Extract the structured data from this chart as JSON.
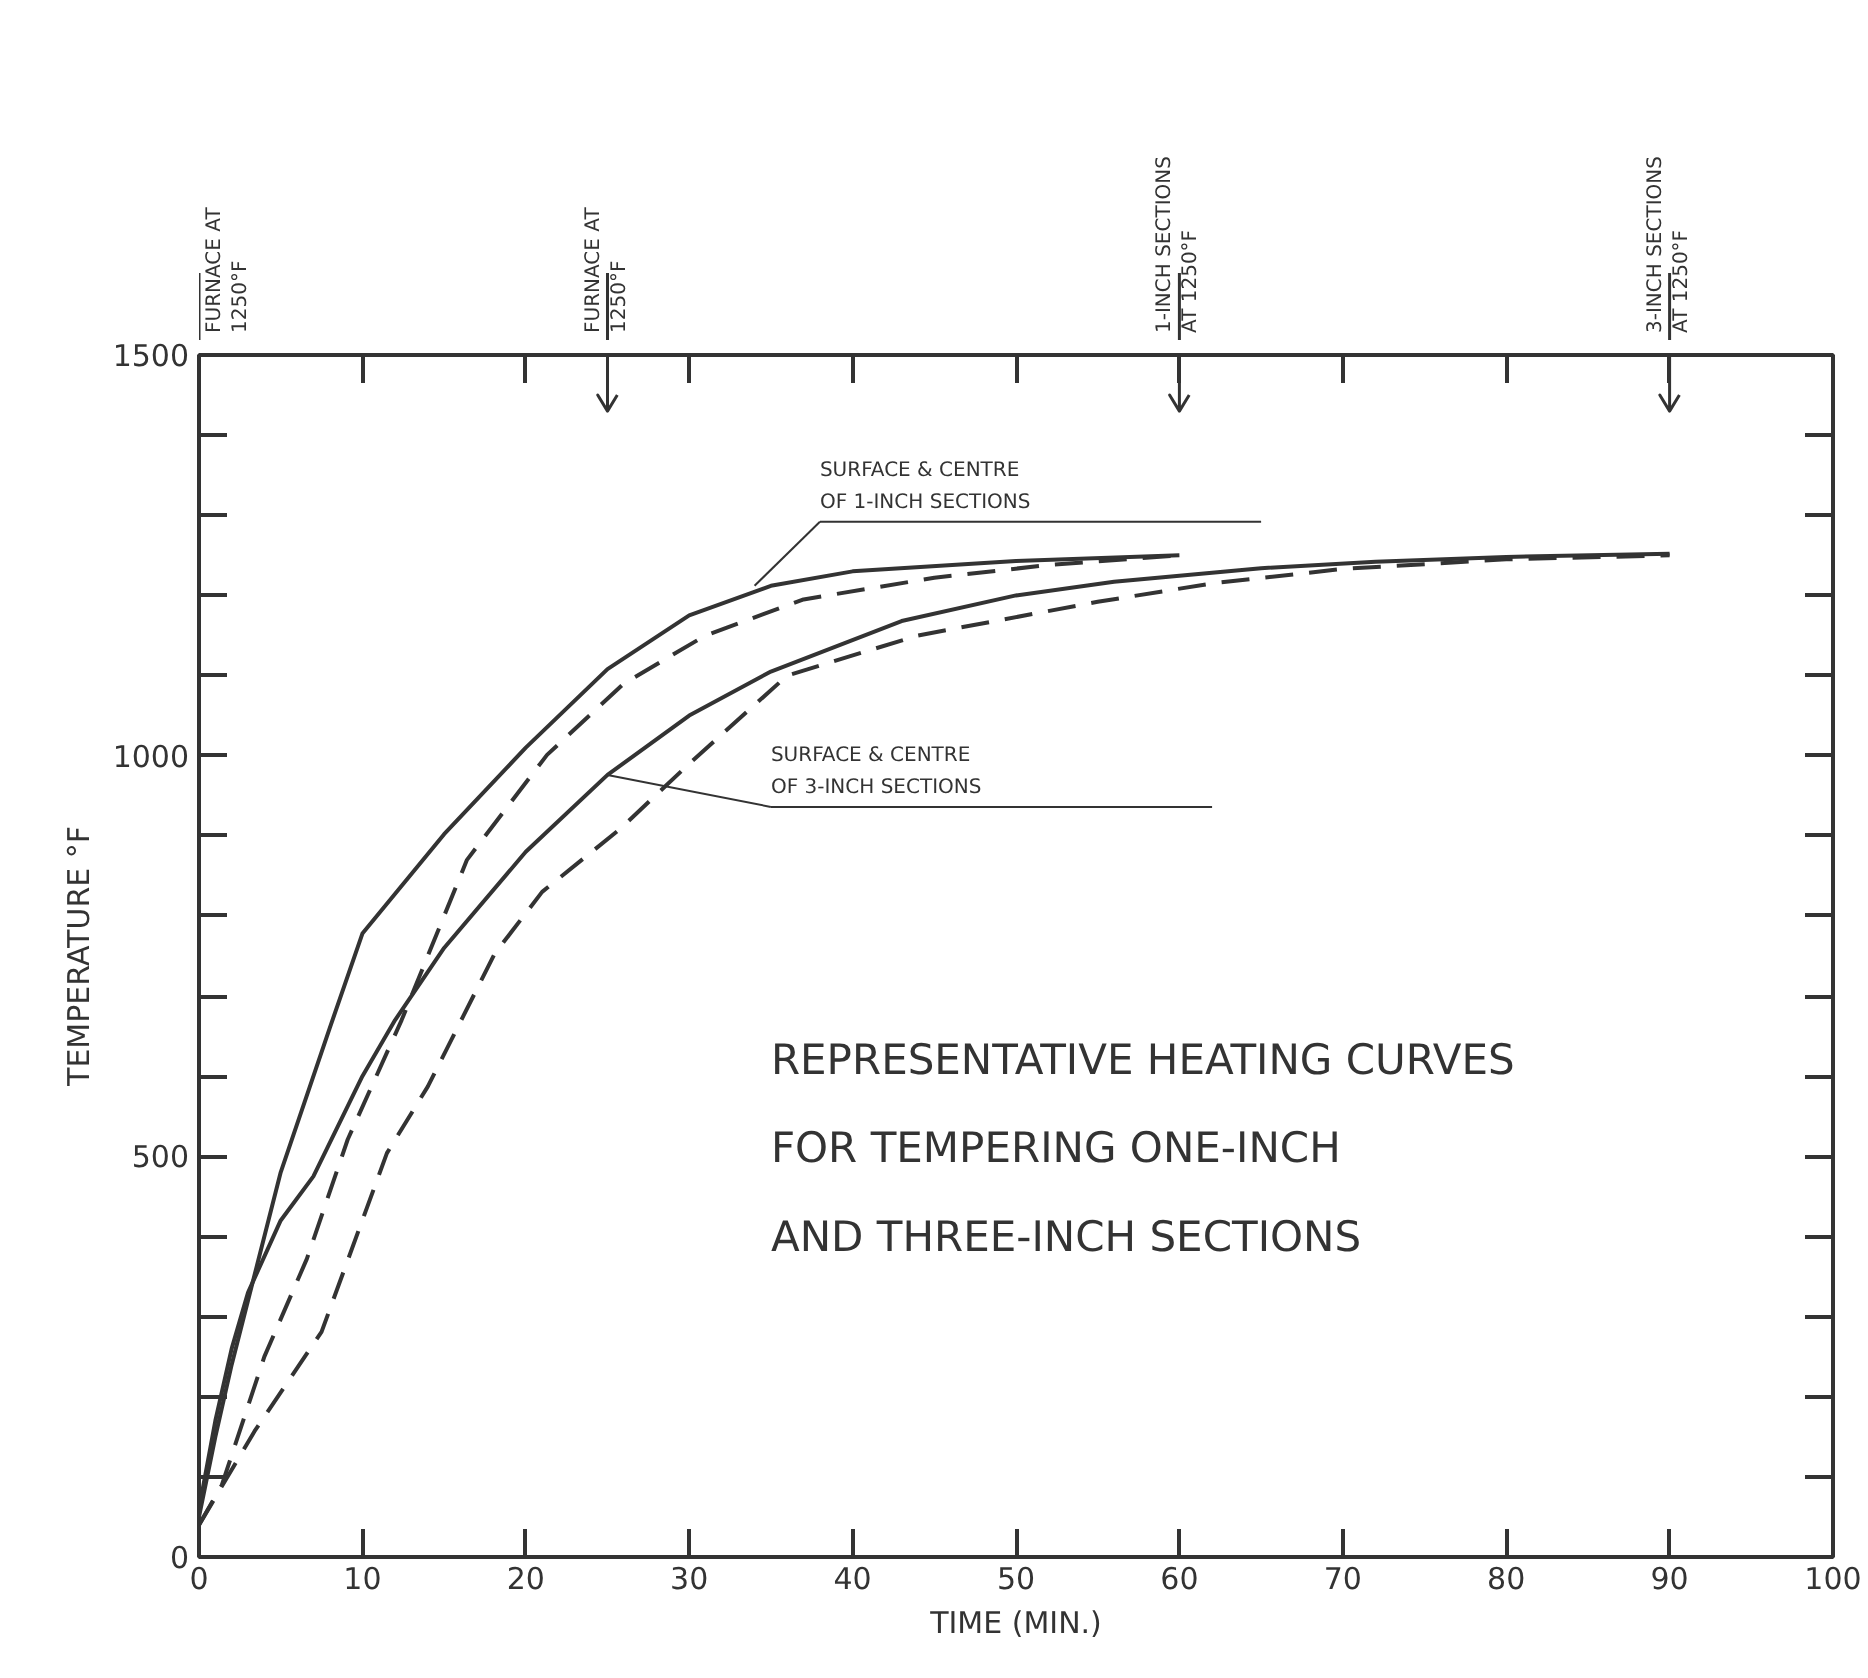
{
  "chart_data": {
    "type": "line",
    "title": "REPRESENTATIVE HEATING CURVES\nFOR TEMPERING ONE-INCH\nAND THREE-INCH SECTIONS",
    "xlabel": "TIME (MIN.)",
    "ylabel": "TEMPERATURE °F",
    "xlim": [
      0,
      100
    ],
    "ylim": [
      0,
      1500
    ],
    "xticks": [
      0,
      10,
      20,
      30,
      40,
      50,
      60,
      70,
      80,
      90,
      100
    ],
    "yticks": [
      0,
      {
        "value": 100,
        "label": null
      },
      {
        "value": 200,
        "label": null
      },
      {
        "value": 300,
        "label": null
      },
      {
        "value": 400,
        "label": null
      },
      500,
      {
        "value": 600,
        "label": null
      },
      {
        "value": 700,
        "label": null
      },
      {
        "value": 800,
        "label": null
      },
      {
        "value": 900,
        "label": null
      },
      1000,
      {
        "value": 1100,
        "label": null
      },
      {
        "value": 1200,
        "label": null
      },
      {
        "value": 1300,
        "label": null
      },
      {
        "value": 1400,
        "label": null
      },
      1500
    ],
    "grid": false,
    "series": [
      {
        "color": "#333333",
        "line_style": "solid",
        "x": [
          0,
          1,
          2,
          3,
          5,
          8,
          10,
          15,
          20,
          25,
          30,
          35,
          40,
          50,
          60
        ],
        "values": [
          50,
          150,
          240,
          320,
          480,
          660,
          778,
          902,
          1010,
          1108,
          1175,
          1212,
          1230,
          1243,
          1250
        ]
      },
      {
        "color": "#333333",
        "line_style": "dashed",
        "x": [
          0,
          1.4,
          4,
          6.6,
          9.1,
          12.4,
          16.4,
          21.3,
          26,
          31,
          37,
          45,
          52,
          60
        ],
        "values": [
          40,
          90,
          250,
          372,
          521,
          670,
          870,
          1001,
          1090,
          1150,
          1195,
          1222,
          1238,
          1250
        ]
      },
      {
        "color": "#333333",
        "line_style": "solid",
        "x": [
          0,
          1,
          2,
          3,
          5,
          7,
          10,
          12,
          15,
          20,
          25,
          30,
          35,
          43,
          50,
          56,
          65,
          72,
          80,
          90
        ],
        "values": [
          60,
          170,
          260,
          330,
          420,
          475,
          600,
          670,
          760,
          880,
          976,
          1050,
          1105,
          1168,
          1200,
          1217,
          1234,
          1242,
          1248,
          1252
        ]
      },
      {
        "color": "#333333",
        "line_style": "dashed",
        "x": [
          0,
          3.4,
          7.5,
          11.5,
          14,
          18.1,
          21,
          25.8,
          30,
          36,
          44,
          55,
          62,
          70,
          80,
          90
        ],
        "values": [
          40,
          157,
          281,
          504,
          587,
          753,
          830,
          909,
          990,
          1100,
          1150,
          1192,
          1215,
          1233,
          1245,
          1250
        ]
      }
    ],
    "ref_lines": [
      {
        "axis": "x",
        "value": 0,
        "label": "FURNACE AT\n1250°F"
      },
      {
        "axis": "x",
        "value": 25,
        "label": "FURNACE AT\n1250°F"
      },
      {
        "axis": "x",
        "value": 60,
        "label": "1-INCH SECTIONS\nAT 1250°F"
      },
      {
        "axis": "x",
        "value": 90,
        "label": "3-INCH SECTIONS\nAT 1250°F"
      }
    ],
    "annotations": [
      {
        "text": "SURFACE & CENTRE\nOF 1-INCH SECTIONS",
        "x": 34,
        "y": 1212
      },
      {
        "text": "SURFACE & CENTRE\nOF 3-INCH SECTIONS",
        "x": 25,
        "y": 976
      }
    ]
  }
}
